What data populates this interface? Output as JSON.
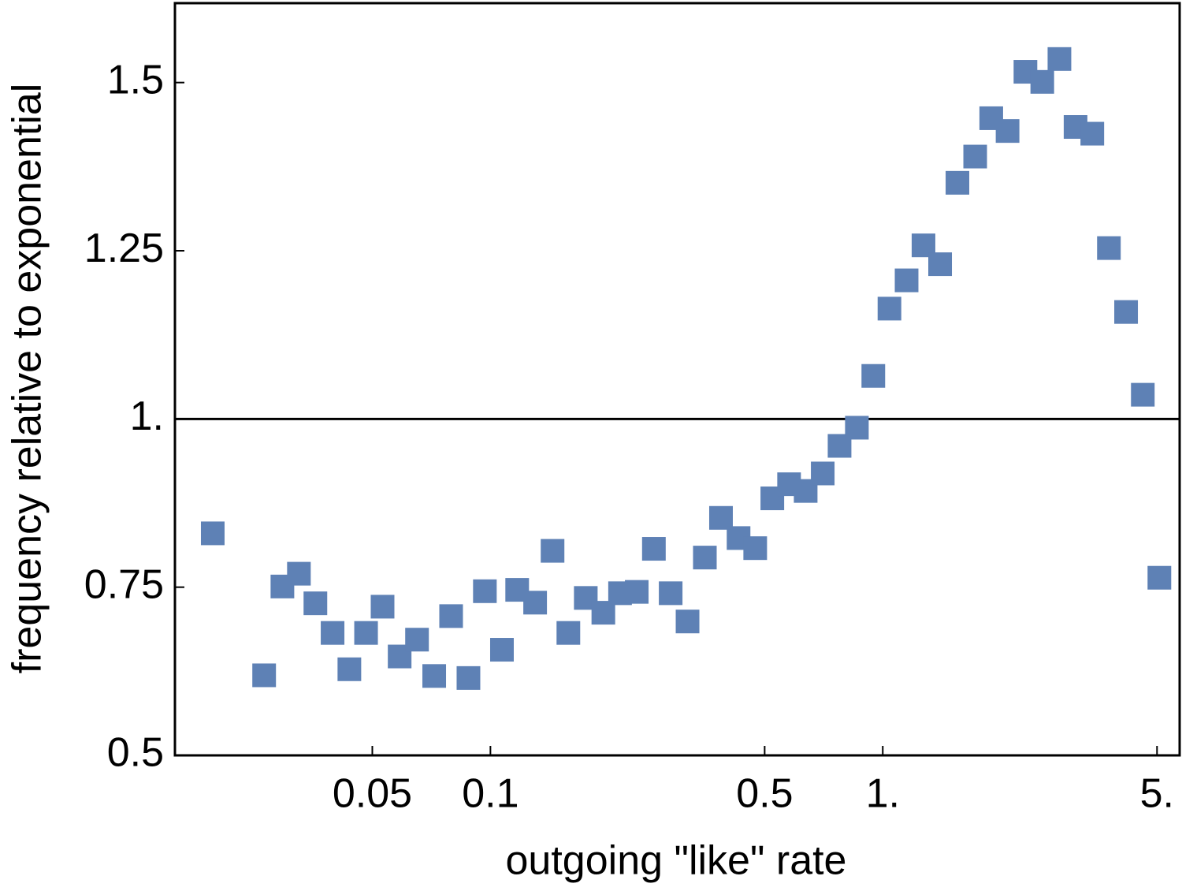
{
  "chart_data": {
    "type": "scatter",
    "xlabel": "outgoing \"like\" rate",
    "ylabel": "frequency relative to exponential",
    "xscale": "log",
    "color": "#5e81b5",
    "reference_line": 1,
    "x": [
      0.0196,
      0.0265,
      0.0295,
      0.0325,
      0.0358,
      0.0396,
      0.0437,
      0.0482,
      0.0531,
      0.0587,
      0.065,
      0.0719,
      0.0794,
      0.0879,
      0.0968,
      0.107,
      0.117,
      0.13,
      0.144,
      0.158,
      0.175,
      0.194,
      0.214,
      0.236,
      0.261,
      0.288,
      0.318,
      0.352,
      0.387,
      0.429,
      0.473,
      0.523,
      0.577,
      0.636,
      0.703,
      0.776,
      0.859,
      0.946,
      1.04,
      1.15,
      1.27,
      1.4,
      1.55,
      1.72,
      1.89,
      2.08,
      2.31,
      2.55,
      2.82,
      3.1,
      3.42,
      3.77,
      4.17,
      4.6,
      5.07
    ],
    "values": [
      0.83,
      0.619,
      0.751,
      0.77,
      0.726,
      0.682,
      0.628,
      0.682,
      0.721,
      0.647,
      0.672,
      0.618,
      0.707,
      0.615,
      0.744,
      0.657,
      0.746,
      0.727,
      0.804,
      0.682,
      0.734,
      0.712,
      0.741,
      0.743,
      0.807,
      0.741,
      0.699,
      0.794,
      0.853,
      0.823,
      0.808,
      0.882,
      0.903,
      0.893,
      0.919,
      0.96,
      0.987,
      1.064,
      1.164,
      1.206,
      1.258,
      1.23,
      1.351,
      1.39,
      1.447,
      1.428,
      1.516,
      1.501,
      1.535,
      1.434,
      1.424,
      1.254,
      1.159,
      1.036,
      0.764
    ],
    "xlim": [
      0.0157,
      5.71
    ],
    "ylim": [
      0.5,
      1.618
    ],
    "xticks": [
      0.05,
      0.1,
      0.5,
      {
        "value": 1,
        "label": "1."
      },
      {
        "value": 5,
        "label": "5."
      }
    ],
    "yticks": [
      0.5,
      0.75,
      {
        "value": 1,
        "label": "1."
      },
      1.25,
      1.5
    ]
  }
}
